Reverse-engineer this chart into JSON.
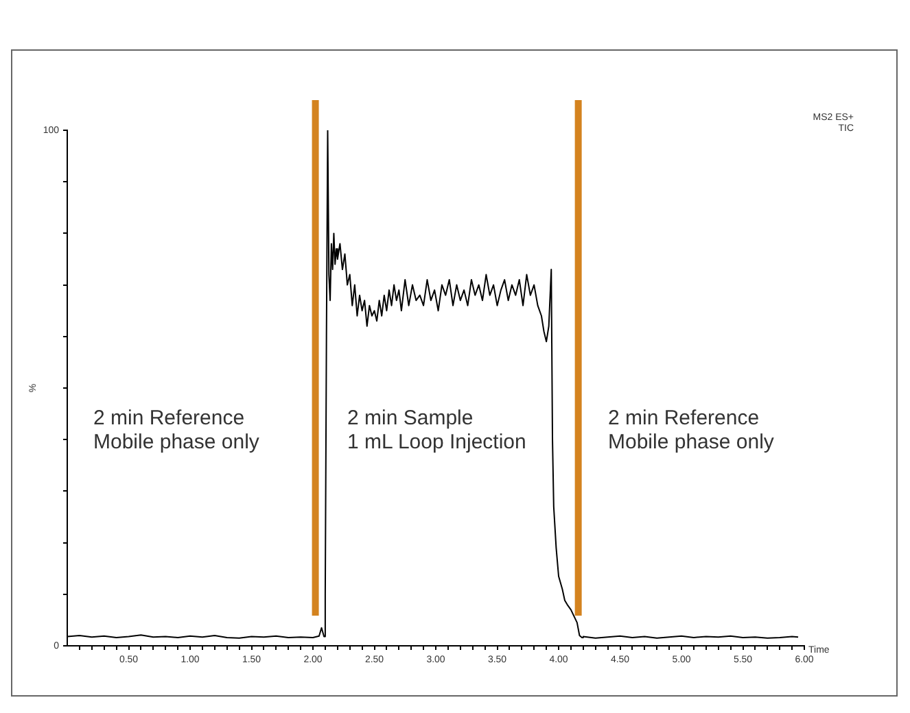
{
  "chart_data": {
    "type": "line",
    "xlabel": "Time",
    "ylabel": "%",
    "x": [
      0.0,
      0.1,
      0.2,
      0.3,
      0.4,
      0.5,
      0.6,
      0.7,
      0.8,
      0.9,
      1.0,
      1.1,
      1.2,
      1.3,
      1.4,
      1.5,
      1.6,
      1.7,
      1.8,
      1.9,
      2.0,
      2.05,
      2.07,
      2.09,
      2.1,
      2.11,
      2.12,
      2.13,
      2.14,
      2.15,
      2.16,
      2.17,
      2.18,
      2.19,
      2.2,
      2.22,
      2.24,
      2.26,
      2.28,
      2.3,
      2.32,
      2.34,
      2.36,
      2.38,
      2.4,
      2.42,
      2.44,
      2.46,
      2.48,
      2.5,
      2.52,
      2.54,
      2.56,
      2.58,
      2.6,
      2.62,
      2.64,
      2.66,
      2.68,
      2.7,
      2.72,
      2.75,
      2.78,
      2.81,
      2.84,
      2.87,
      2.9,
      2.93,
      2.96,
      2.99,
      3.02,
      3.05,
      3.08,
      3.11,
      3.14,
      3.17,
      3.2,
      3.23,
      3.26,
      3.29,
      3.32,
      3.35,
      3.38,
      3.41,
      3.44,
      3.47,
      3.5,
      3.53,
      3.56,
      3.59,
      3.62,
      3.65,
      3.68,
      3.71,
      3.74,
      3.77,
      3.8,
      3.83,
      3.86,
      3.88,
      3.9,
      3.92,
      3.94,
      3.95,
      3.96,
      3.98,
      4.0,
      4.03,
      4.05,
      4.07,
      4.1,
      4.13,
      4.15,
      4.17,
      4.19,
      4.2,
      4.3,
      4.4,
      4.5,
      4.6,
      4.7,
      4.8,
      4.9,
      5.0,
      5.1,
      5.2,
      5.3,
      5.4,
      5.5,
      5.6,
      5.7,
      5.8,
      5.9,
      5.95
    ],
    "series": [
      {
        "color": "#000000",
        "values": [
          1.8,
          2.0,
          1.7,
          1.9,
          1.6,
          1.8,
          2.1,
          1.7,
          1.8,
          1.6,
          1.9,
          1.7,
          2.0,
          1.6,
          1.5,
          1.8,
          1.7,
          1.9,
          1.6,
          1.7,
          1.6,
          1.9,
          3.5,
          1.8,
          10,
          60,
          100,
          72,
          67,
          78,
          73,
          80,
          74,
          77,
          75,
          78,
          73,
          76,
          70,
          72,
          66,
          70,
          64,
          68,
          65,
          67,
          62,
          66,
          64,
          65,
          63,
          67,
          64,
          68,
          65,
          69,
          66,
          70,
          67,
          69,
          65,
          71,
          66,
          70,
          67,
          68,
          66,
          71,
          67,
          69,
          65,
          70,
          68,
          71,
          66,
          70,
          67,
          69,
          66,
          71,
          68,
          70,
          67,
          72,
          68,
          70,
          66,
          69,
          71,
          67,
          70,
          68,
          71,
          66,
          72,
          68,
          70,
          66,
          64,
          61,
          59,
          62,
          73,
          40,
          27,
          19,
          13.5,
          11,
          8.8,
          8,
          7,
          5.5,
          4.5,
          2,
          1.6,
          1.8,
          1.5,
          1.7,
          1.9,
          1.6,
          1.8,
          1.5,
          1.7,
          1.9,
          1.6,
          1.8,
          1.7,
          1.9,
          1.6,
          1.7,
          1.5,
          1.6,
          1.8,
          1.7
        ]
      }
    ],
    "xlim": [
      0,
      6.0
    ],
    "xticks": [
      {
        "value": 0.1,
        "label": null
      },
      {
        "value": 0.2,
        "label": null
      },
      {
        "value": 0.3,
        "label": null
      },
      {
        "value": 0.4,
        "label": null
      },
      {
        "value": 0.5,
        "label": "0.50"
      },
      {
        "value": 0.6,
        "label": null
      },
      {
        "value": 0.7,
        "label": null
      },
      {
        "value": 0.8,
        "label": null
      },
      {
        "value": 0.9,
        "label": null
      },
      {
        "value": 1.0,
        "label": "1.00"
      },
      {
        "value": 1.1,
        "label": null
      },
      {
        "value": 1.2,
        "label": null
      },
      {
        "value": 1.3,
        "label": null
      },
      {
        "value": 1.4,
        "label": null
      },
      {
        "value": 1.5,
        "label": "1.50"
      },
      {
        "value": 1.6,
        "label": null
      },
      {
        "value": 1.7,
        "label": null
      },
      {
        "value": 1.8,
        "label": null
      },
      {
        "value": 1.9,
        "label": null
      },
      {
        "value": 2.0,
        "label": "2.00"
      },
      {
        "value": 2.1,
        "label": null
      },
      {
        "value": 2.2,
        "label": null
      },
      {
        "value": 2.3,
        "label": null
      },
      {
        "value": 2.4,
        "label": null
      },
      {
        "value": 2.5,
        "label": "2.50"
      },
      {
        "value": 2.6,
        "label": null
      },
      {
        "value": 2.7,
        "label": null
      },
      {
        "value": 2.8,
        "label": null
      },
      {
        "value": 2.9,
        "label": null
      },
      {
        "value": 3.0,
        "label": "3.00"
      },
      {
        "value": 3.1,
        "label": null
      },
      {
        "value": 3.2,
        "label": null
      },
      {
        "value": 3.3,
        "label": null
      },
      {
        "value": 3.4,
        "label": null
      },
      {
        "value": 3.5,
        "label": "3.50"
      },
      {
        "value": 3.6,
        "label": null
      },
      {
        "value": 3.7,
        "label": null
      },
      {
        "value": 3.8,
        "label": null
      },
      {
        "value": 3.9,
        "label": null
      },
      {
        "value": 4.0,
        "label": "4.00"
      },
      {
        "value": 4.1,
        "label": null
      },
      {
        "value": 4.2,
        "label": null
      },
      {
        "value": 4.3,
        "label": null
      },
      {
        "value": 4.4,
        "label": null
      },
      {
        "value": 4.5,
        "label": "4.50"
      },
      {
        "value": 4.6,
        "label": null
      },
      {
        "value": 4.7,
        "label": null
      },
      {
        "value": 4.8,
        "label": null
      },
      {
        "value": 4.9,
        "label": null
      },
      {
        "value": 5.0,
        "label": "5.00"
      },
      {
        "value": 5.1,
        "label": null
      },
      {
        "value": 5.2,
        "label": null
      },
      {
        "value": 5.3,
        "label": null
      },
      {
        "value": 5.4,
        "label": null
      },
      {
        "value": 5.5,
        "label": "5.50"
      },
      {
        "value": 5.6,
        "label": null
      },
      {
        "value": 5.7,
        "label": null
      },
      {
        "value": 5.8,
        "label": null
      },
      {
        "value": 5.9,
        "label": null
      },
      {
        "value": 6.0,
        "label": "6.00"
      }
    ],
    "ylim": [
      0,
      100
    ],
    "yticks": [
      0,
      {
        "value": 10,
        "label": null
      },
      {
        "value": 20,
        "label": null
      },
      {
        "value": 30,
        "label": null
      },
      {
        "value": 40,
        "label": null
      },
      {
        "value": 50,
        "label": null
      },
      {
        "value": 60,
        "label": null
      },
      {
        "value": 70,
        "label": null
      },
      {
        "value": 80,
        "label": null
      },
      {
        "value": 90,
        "label": null
      },
      100
    ],
    "marker": "none",
    "grid": false,
    "legend": false,
    "ref_lines": [
      {
        "axis": "x",
        "value": 2.02,
        "color": "#d4831f"
      },
      {
        "axis": "x",
        "value": 4.16,
        "color": "#d4831f"
      }
    ],
    "annotations": [
      "2 min Reference\nMobile phase only",
      "2 min Sample\n1 mL Loop Injection",
      "2 min Reference\nMobile phase only",
      "MS2 ES+\nTIC"
    ]
  }
}
